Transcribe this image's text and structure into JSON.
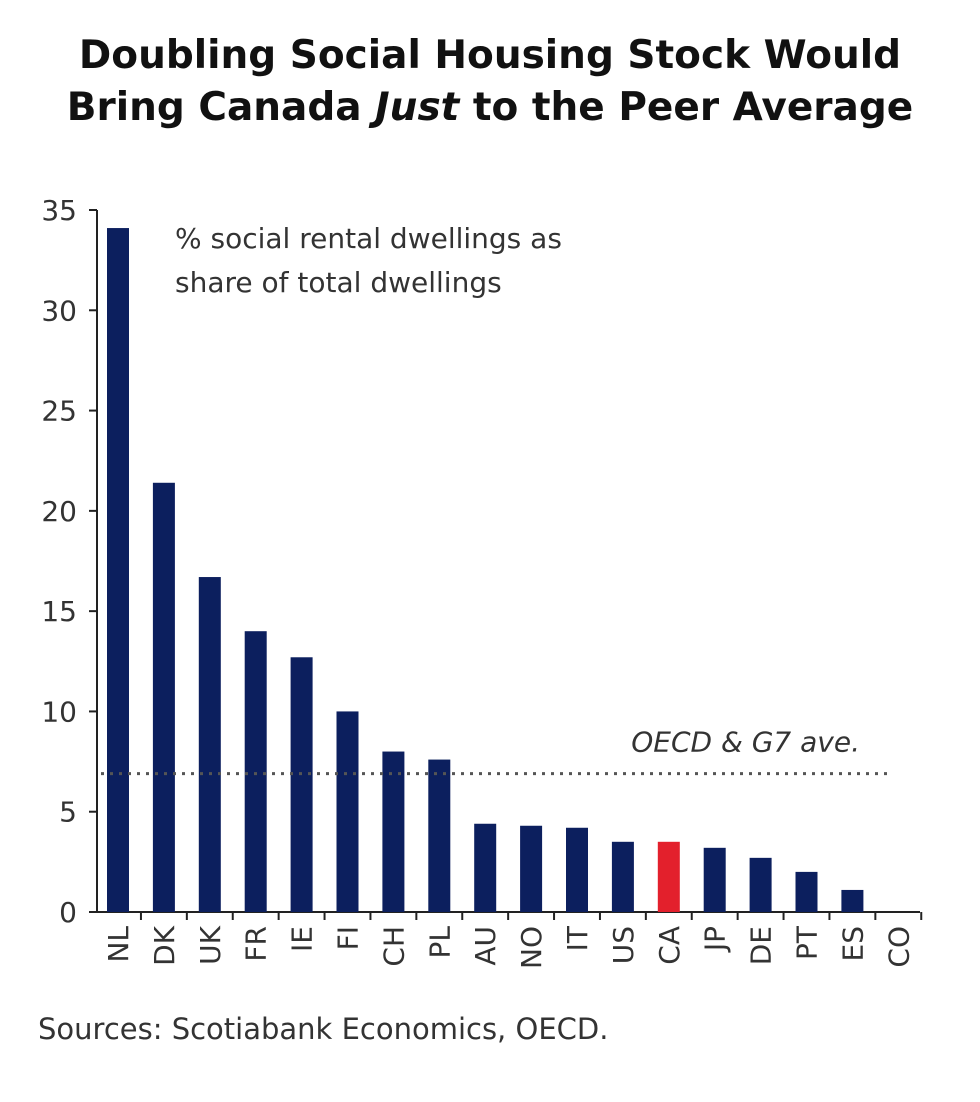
{
  "chart_data": {
    "type": "bar",
    "title_line1": "Doubling Social Housing Stock Would",
    "title_line2_pre": "Bring Canada ",
    "title_line2_em": "Just",
    "title_line2_post": " to the Peer Average",
    "annotation_line1": "% social rental dwellings as",
    "annotation_line2": "share of total dwellings",
    "categories": [
      "NL",
      "DK",
      "UK",
      "FR",
      "IE",
      "FI",
      "CH",
      "PL",
      "AU",
      "NO",
      "IT",
      "US",
      "CA",
      "JP",
      "DE",
      "PT",
      "ES",
      "CO"
    ],
    "values": [
      34.1,
      21.4,
      16.7,
      14.0,
      12.7,
      10.0,
      8.0,
      7.6,
      4.4,
      4.3,
      4.2,
      3.5,
      3.5,
      3.2,
      2.7,
      2.0,
      1.1,
      0
    ],
    "highlight": "CA",
    "reference_line": {
      "label": "OECD & G7 ave.",
      "value": 6.9,
      "style": "dotted"
    },
    "ylim": [
      0,
      35
    ],
    "yticks": [
      0,
      5,
      10,
      15,
      20,
      25,
      30,
      35
    ],
    "xlabel": "",
    "ylabel": "",
    "grid": false,
    "colors": {
      "bar": "#0c1f5e",
      "highlight": "#e3202c",
      "reference": "#555555"
    },
    "source": "Sources: Scotiabank Economics, OECD."
  }
}
